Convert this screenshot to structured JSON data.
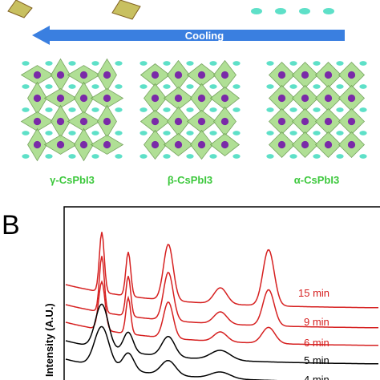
{
  "panel_a": {
    "arrow_label": "Cooling",
    "phases": [
      "γ-CsPbI3",
      "β-CsPbI3",
      "α-CsPbI3"
    ]
  },
  "panel_b": {
    "label": "B",
    "y_axis_label": "Intensity (A.U.)",
    "curve_labels": [
      "15 min",
      "9 min",
      "6 min",
      "5 min",
      "4 min"
    ]
  }
}
